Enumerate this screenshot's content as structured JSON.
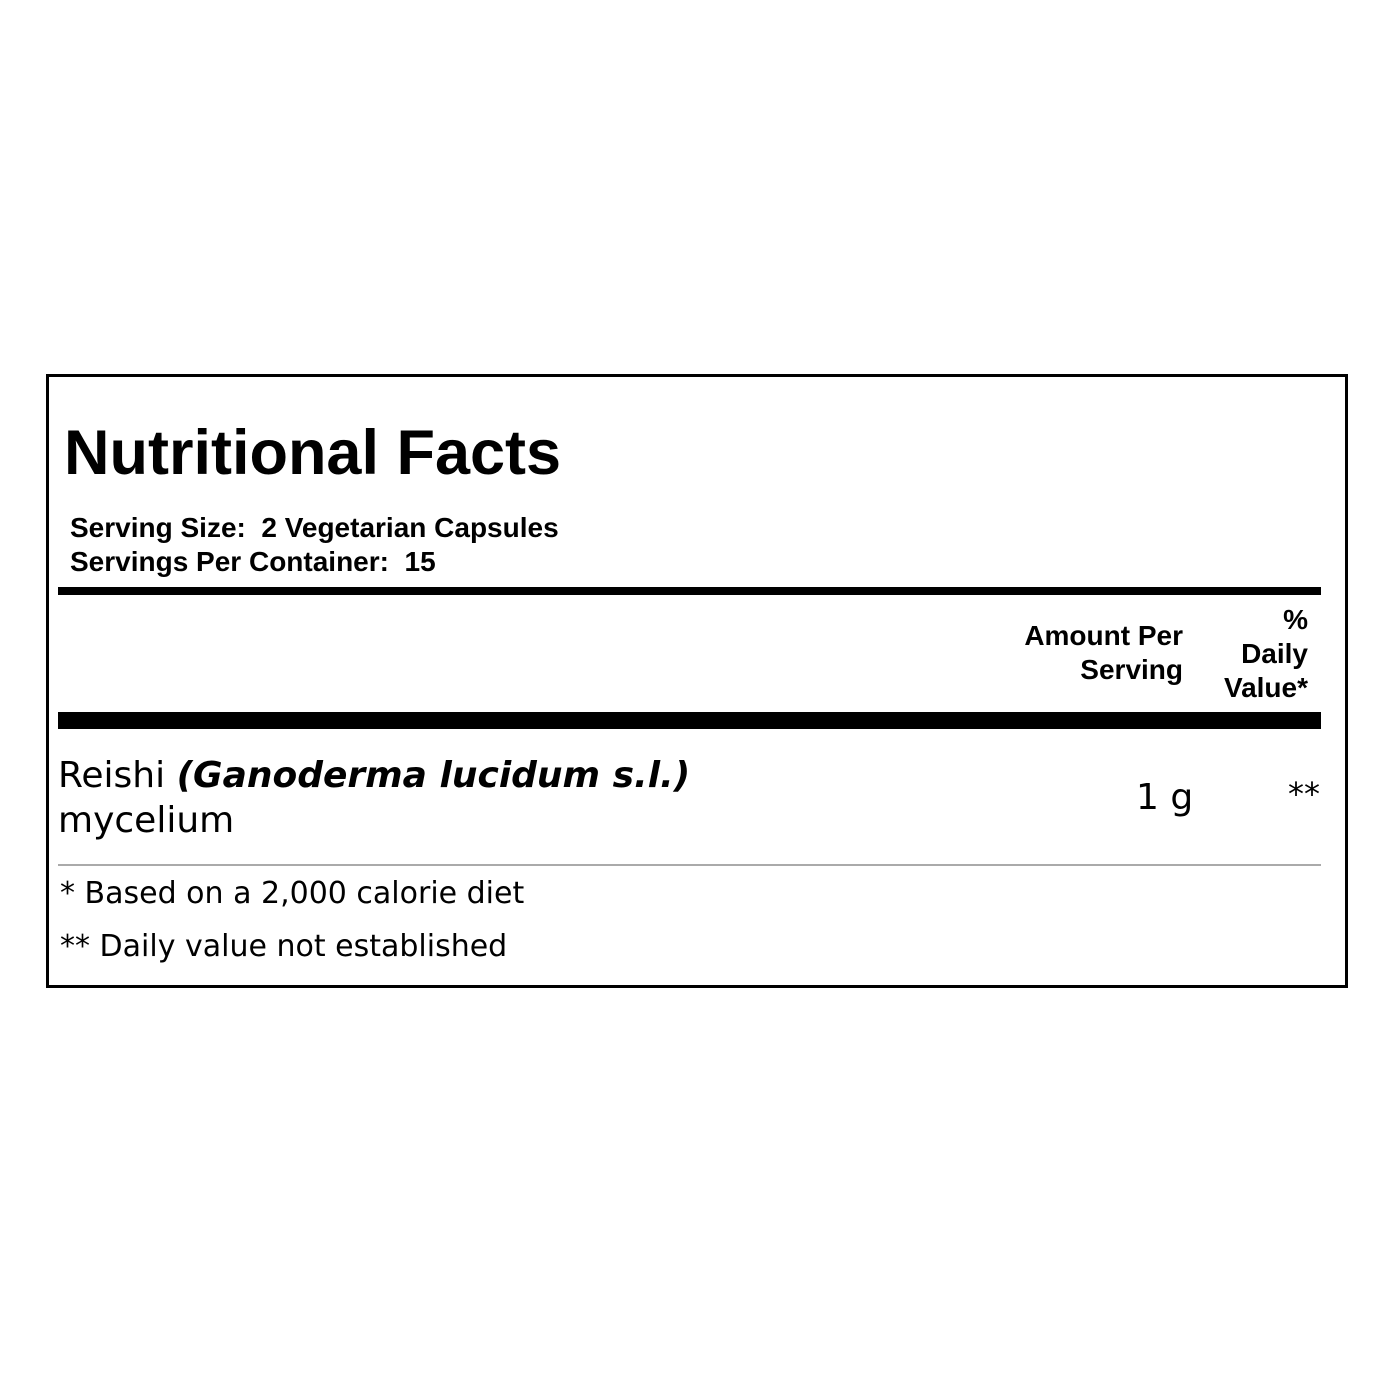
{
  "label": {
    "title": "Nutritional Facts",
    "serving_size": "Serving Size:  2 Vegetarian Capsules",
    "servings_per_container": "Servings Per Container:  15",
    "header": {
      "amount": [
        "Amount Per",
        "Serving"
      ],
      "daily_value": [
        "%",
        "Daily",
        "Value*"
      ]
    },
    "rows": [
      {
        "name": "Reishi",
        "latin": "(Ganoderma lucidum s.l.)",
        "part": "mycelium",
        "amount": "1 g",
        "daily_value": "**"
      }
    ],
    "footnotes": [
      "* Based on a 2,000 calorie diet",
      "** Daily value not established"
    ]
  }
}
